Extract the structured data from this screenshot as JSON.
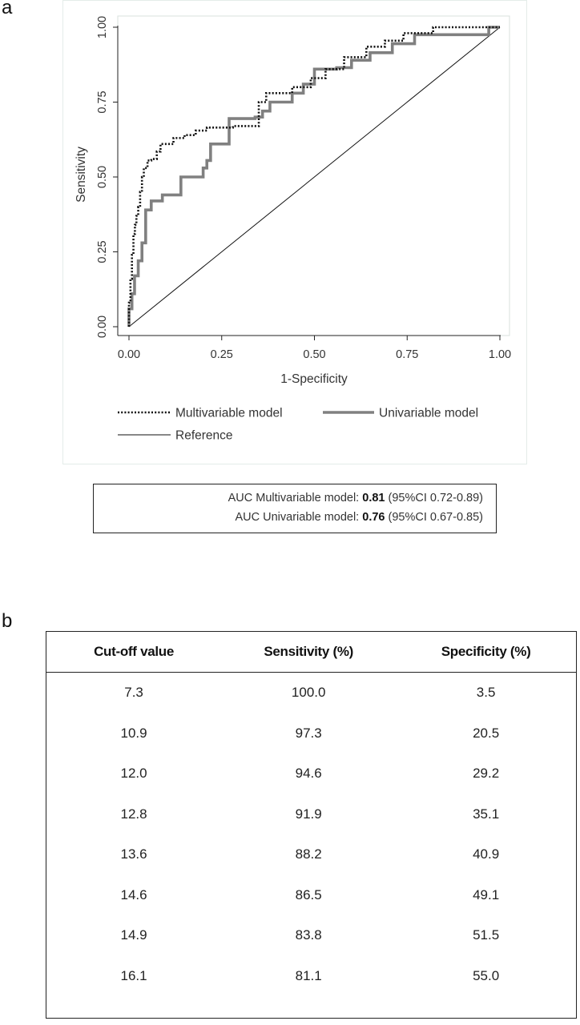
{
  "panel_a_label": "a",
  "panel_b_label": "b",
  "chart_data": {
    "type": "line",
    "title": "",
    "xlabel": "1-Specificity",
    "ylabel": "Sensitivity",
    "xlim": [
      0,
      1
    ],
    "ylim": [
      0,
      1
    ],
    "x_ticks": [
      "0.00",
      "0.25",
      "0.50",
      "0.75",
      "1.00"
    ],
    "y_ticks": [
      "0.00",
      "0.25",
      "0.50",
      "0.75",
      "1.00"
    ],
    "grid": false,
    "legend_placement": "bottom",
    "series": [
      {
        "name": "Multivariable model",
        "style": "dotted",
        "color": "#111111",
        "x": [
          0,
          0,
          0.004,
          0.004,
          0.008,
          0.008,
          0.012,
          0.012,
          0.016,
          0.016,
          0.02,
          0.02,
          0.025,
          0.025,
          0.03,
          0.03,
          0.035,
          0.035,
          0.04,
          0.04,
          0.05,
          0.05,
          0.06,
          0.06,
          0.075,
          0.075,
          0.085,
          0.085,
          0.12,
          0.12,
          0.15,
          0.15,
          0.18,
          0.18,
          0.21,
          0.21,
          0.28,
          0.28,
          0.31,
          0.31,
          0.35,
          0.35,
          0.37,
          0.37,
          0.44,
          0.44,
          0.49,
          0.49,
          0.53,
          0.53,
          0.58,
          0.58,
          0.64,
          0.64,
          0.69,
          0.69,
          0.74,
          0.74,
          0.82,
          0.82,
          1
        ],
        "y": [
          0,
          0.08,
          0.08,
          0.16,
          0.16,
          0.24,
          0.24,
          0.31,
          0.31,
          0.34,
          0.34,
          0.37,
          0.37,
          0.4,
          0.4,
          0.45,
          0.45,
          0.5,
          0.5,
          0.53,
          0.53,
          0.555,
          0.555,
          0.56,
          0.56,
          0.585,
          0.585,
          0.61,
          0.61,
          0.63,
          0.63,
          0.64,
          0.64,
          0.655,
          0.655,
          0.665,
          0.665,
          0.67,
          0.67,
          0.67,
          0.67,
          0.75,
          0.75,
          0.78,
          0.78,
          0.8,
          0.8,
          0.83,
          0.83,
          0.86,
          0.86,
          0.9,
          0.9,
          0.935,
          0.935,
          0.955,
          0.955,
          0.98,
          0.98,
          1,
          1
        ]
      },
      {
        "name": "Univariable model",
        "style": "solid-thick",
        "color": "#808080",
        "x": [
          0,
          0,
          0.008,
          0.008,
          0.015,
          0.015,
          0.025,
          0.025,
          0.035,
          0.035,
          0.045,
          0.045,
          0.06,
          0.06,
          0.09,
          0.09,
          0.14,
          0.14,
          0.2,
          0.2,
          0.21,
          0.21,
          0.22,
          0.22,
          0.27,
          0.27,
          0.34,
          0.34,
          0.36,
          0.36,
          0.38,
          0.38,
          0.44,
          0.44,
          0.47,
          0.47,
          0.5,
          0.5,
          0.56,
          0.56,
          0.6,
          0.6,
          0.65,
          0.65,
          0.71,
          0.71,
          0.77,
          0.77,
          0.97,
          0.97,
          1
        ],
        "y": [
          0,
          0.06,
          0.06,
          0.11,
          0.11,
          0.17,
          0.17,
          0.22,
          0.22,
          0.28,
          0.28,
          0.39,
          0.39,
          0.42,
          0.42,
          0.44,
          0.44,
          0.5,
          0.5,
          0.53,
          0.53,
          0.555,
          0.555,
          0.61,
          0.61,
          0.695,
          0.695,
          0.7,
          0.7,
          0.72,
          0.72,
          0.75,
          0.75,
          0.78,
          0.78,
          0.81,
          0.81,
          0.86,
          0.86,
          0.865,
          0.865,
          0.89,
          0.89,
          0.915,
          0.915,
          0.945,
          0.945,
          0.975,
          0.975,
          1,
          1
        ]
      },
      {
        "name": "Reference",
        "style": "solid-thin",
        "color": "#111111",
        "x": [
          0,
          1
        ],
        "y": [
          0,
          1
        ]
      }
    ]
  },
  "auc": {
    "multi_label": "AUC Multivariable  model:",
    "multi_value": "0.81",
    "multi_ci": "(95%CI 0.72-0.89)",
    "uni_label": "AUC Univariable  model:",
    "uni_value": "0.76",
    "uni_ci": "(95%CI 0.67-0.85)"
  },
  "table": {
    "headers": [
      "Cut-off value",
      "Sensitivity (%)",
      "Specificity (%)"
    ],
    "rows": [
      [
        "7.3",
        "100.0",
        "3.5"
      ],
      [
        "10.9",
        "97.3",
        "20.5"
      ],
      [
        "12.0",
        "94.6",
        "29.2"
      ],
      [
        "12.8",
        "91.9",
        "35.1"
      ],
      [
        "13.6",
        "88.2",
        "40.9"
      ],
      [
        "14.6",
        "86.5",
        "49.1"
      ],
      [
        "14.9",
        "83.8",
        "51.5"
      ],
      [
        "16.1",
        "81.1",
        "55.0"
      ]
    ]
  }
}
